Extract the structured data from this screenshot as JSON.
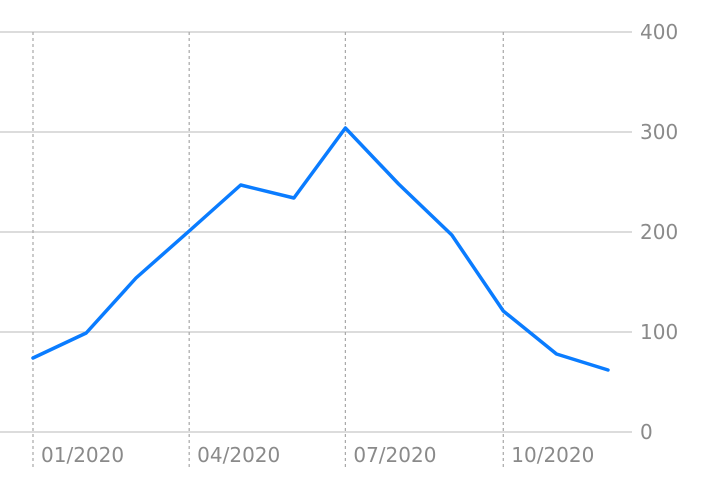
{
  "chart_data": {
    "type": "line",
    "title": "",
    "xlabel": "",
    "ylabel": "",
    "x": [
      "2020-01-01",
      "2020-02-01",
      "2020-03-01",
      "2020-04-01",
      "2020-05-01",
      "2020-06-01",
      "2020-07-01",
      "2020-08-01",
      "2020-09-01",
      "2020-10-01",
      "2020-11-01",
      "2020-12-01"
    ],
    "series": [
      {
        "values": [
          74,
          99,
          154,
          201,
          247,
          234,
          304,
          248,
          197,
          121,
          78,
          62
        ],
        "color": "#0a7cff"
      }
    ],
    "ylim": [
      0,
      400
    ],
    "xlim": [
      "2020-01-01",
      "2020-12-15"
    ],
    "y_ticks": [
      "0",
      "100",
      "200",
      "300",
      "400"
    ],
    "x_ticks": [
      {
        "date": "2020-01-01",
        "label": "01/2020"
      },
      {
        "date": "2020-04-01",
        "label": "04/2020"
      },
      {
        "date": "2020-07-01",
        "label": "07/2020"
      },
      {
        "date": "2020-10-01",
        "label": "10/2020"
      }
    ],
    "y_axis_position": "right",
    "grid": true,
    "legend": "none"
  }
}
